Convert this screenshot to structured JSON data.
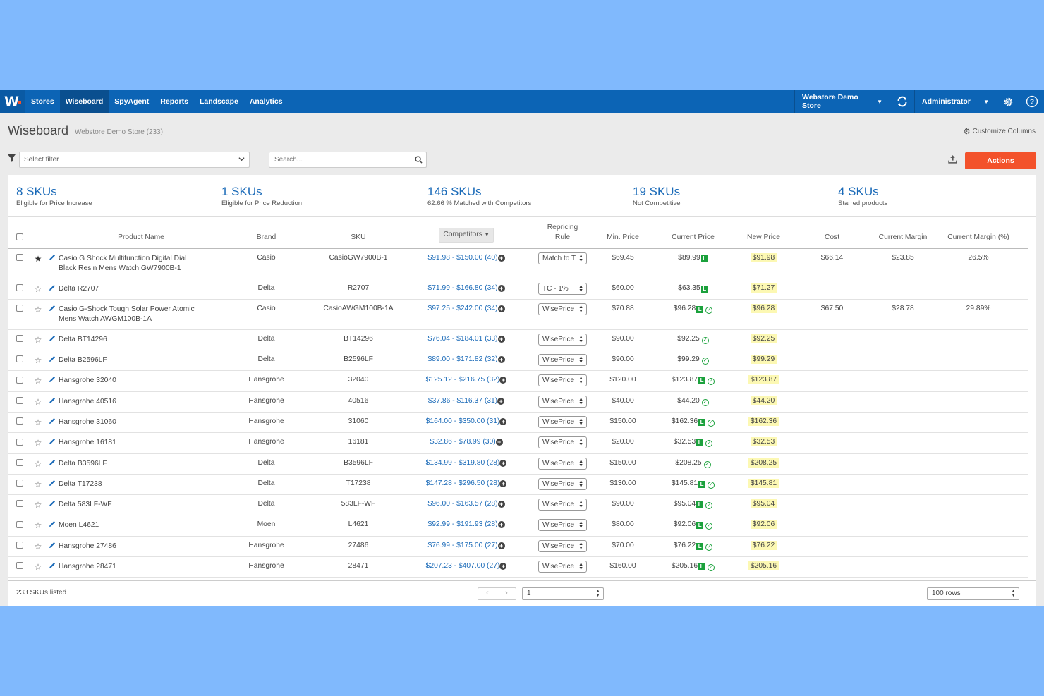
{
  "nav": {
    "logo": "W",
    "items": [
      "Stores",
      "Wiseboard",
      "SpyAgent",
      "Reports",
      "Landscape",
      "Analytics"
    ],
    "active": "Wiseboard",
    "store": "Webstore Demo Store",
    "user": "Administrator",
    "icons": [
      "sync-icon",
      "gear-icon",
      "help-icon"
    ]
  },
  "header": {
    "title": "Wiseboard",
    "subtitle": "Webstore Demo Store (233)",
    "customize": "Customize Columns"
  },
  "toolbar": {
    "filter_placeholder": "Select filter",
    "search_placeholder": "Search...",
    "actions_label": "Actions"
  },
  "stats": [
    {
      "value": "8 SKUs",
      "label": "Eligible for Price Increase"
    },
    {
      "value": "1 SKUs",
      "label": "Eligible for Price Reduction"
    },
    {
      "value": "146 SKUs",
      "label": "62.66 % Matched with Competitors"
    },
    {
      "value": "19 SKUs",
      "label": "Not Competitive"
    },
    {
      "value": "4 SKUs",
      "label": "Starred products"
    }
  ],
  "table": {
    "columns": {
      "product": "Product Name",
      "brand": "Brand",
      "sku": "SKU",
      "competitors": "Competitors",
      "rule_line1": "Repricing",
      "rule_line2": "Rule",
      "min": "Min. Price",
      "current": "Current Price",
      "new": "New Price",
      "cost": "Cost",
      "margin": "Current Margin",
      "margin_pct": "Current Margin (%)"
    },
    "rows": [
      {
        "name": "Casio G Shock Multifunction Digital Dial Black Resin Mens Watch GW7900B-1",
        "starred": true,
        "brand": "Casio",
        "sku": "CasioGW7900B-1",
        "competitors": "$91.98 - $150.00 (40)",
        "rule": "Match to T",
        "min": "$69.45",
        "current": "$89.99",
        "L": true,
        "ok": false,
        "new": "$91.98",
        "cost": "$66.14",
        "margin": "$23.85",
        "margin_pct": "26.5%"
      },
      {
        "name": "Delta R2707",
        "starred": false,
        "brand": "Delta",
        "sku": "R2707",
        "competitors": "$71.99 - $166.80 (34)",
        "rule": "TC - 1%",
        "min": "$60.00",
        "current": "$63.35",
        "L": true,
        "ok": false,
        "new": "$71.27",
        "cost": "",
        "margin": "",
        "margin_pct": ""
      },
      {
        "name": "Casio G-Shock Tough Solar Power Atomic Mens Watch AWGM100B-1A",
        "starred": false,
        "brand": "Casio",
        "sku": "CasioAWGM100B-1A",
        "competitors": "$97.25 - $242.00 (34)",
        "rule": "WisePrice",
        "min": "$70.88",
        "current": "$96.28",
        "L": true,
        "ok": true,
        "new": "$96.28",
        "cost": "$67.50",
        "margin": "$28.78",
        "margin_pct": "29.89%"
      },
      {
        "name": "Delta BT14296",
        "starred": false,
        "brand": "Delta",
        "sku": "BT14296",
        "competitors": "$76.04 - $184.01 (33)",
        "rule": "WisePrice",
        "min": "$90.00",
        "current": "$92.25",
        "L": false,
        "ok": true,
        "new": "$92.25",
        "cost": "",
        "margin": "",
        "margin_pct": ""
      },
      {
        "name": "Delta B2596LF",
        "starred": false,
        "brand": "Delta",
        "sku": "B2596LF",
        "competitors": "$89.00 - $171.82 (32)",
        "rule": "WisePrice",
        "min": "$90.00",
        "current": "$99.29",
        "L": false,
        "ok": true,
        "new": "$99.29",
        "cost": "",
        "margin": "",
        "margin_pct": ""
      },
      {
        "name": "Hansgrohe 32040",
        "starred": false,
        "brand": "Hansgrohe",
        "sku": "32040",
        "competitors": "$125.12 - $216.75 (32)",
        "rule": "WisePrice",
        "min": "$120.00",
        "current": "$123.87",
        "L": true,
        "ok": true,
        "new": "$123.87",
        "cost": "",
        "margin": "",
        "margin_pct": ""
      },
      {
        "name": "Hansgrohe 40516",
        "starred": false,
        "brand": "Hansgrohe",
        "sku": "40516",
        "competitors": "$37.86 - $116.37 (31)",
        "rule": "WisePrice",
        "min": "$40.00",
        "current": "$44.20",
        "L": false,
        "ok": true,
        "new": "$44.20",
        "cost": "",
        "margin": "",
        "margin_pct": ""
      },
      {
        "name": "Hansgrohe 31060",
        "starred": false,
        "brand": "Hansgrohe",
        "sku": "31060",
        "competitors": "$164.00 - $350.00 (31)",
        "rule": "WisePrice",
        "min": "$150.00",
        "current": "$162.36",
        "L": true,
        "ok": true,
        "new": "$162.36",
        "cost": "",
        "margin": "",
        "margin_pct": ""
      },
      {
        "name": "Hansgrohe 16181",
        "starred": false,
        "brand": "Hansgrohe",
        "sku": "16181",
        "competitors": "$32.86 - $78.99 (30)",
        "rule": "WisePrice",
        "min": "$20.00",
        "current": "$32.53",
        "L": true,
        "ok": true,
        "new": "$32.53",
        "cost": "",
        "margin": "",
        "margin_pct": ""
      },
      {
        "name": "Delta B3596LF",
        "starred": false,
        "brand": "Delta",
        "sku": "B3596LF",
        "competitors": "$134.99 - $319.80 (28)",
        "rule": "WisePrice",
        "min": "$150.00",
        "current": "$208.25",
        "L": false,
        "ok": true,
        "new": "$208.25",
        "cost": "",
        "margin": "",
        "margin_pct": ""
      },
      {
        "name": "Delta T17238",
        "starred": false,
        "brand": "Delta",
        "sku": "T17238",
        "competitors": "$147.28 - $296.50 (28)",
        "rule": "WisePrice",
        "min": "$130.00",
        "current": "$145.81",
        "L": true,
        "ok": true,
        "new": "$145.81",
        "cost": "",
        "margin": "",
        "margin_pct": ""
      },
      {
        "name": "Delta 583LF-WF",
        "starred": false,
        "brand": "Delta",
        "sku": "583LF-WF",
        "competitors": "$96.00 - $163.57 (28)",
        "rule": "WisePrice",
        "min": "$90.00",
        "current": "$95.04",
        "L": true,
        "ok": true,
        "new": "$95.04",
        "cost": "",
        "margin": "",
        "margin_pct": ""
      },
      {
        "name": "Moen L4621",
        "starred": false,
        "brand": "Moen",
        "sku": "L4621",
        "competitors": "$92.99 - $191.93 (28)",
        "rule": "WisePrice",
        "min": "$80.00",
        "current": "$92.06",
        "L": true,
        "ok": true,
        "new": "$92.06",
        "cost": "",
        "margin": "",
        "margin_pct": ""
      },
      {
        "name": "Hansgrohe 27486",
        "starred": false,
        "brand": "Hansgrohe",
        "sku": "27486",
        "competitors": "$76.99 - $175.00 (27)",
        "rule": "WisePrice",
        "min": "$70.00",
        "current": "$76.22",
        "L": true,
        "ok": true,
        "new": "$76.22",
        "cost": "",
        "margin": "",
        "margin_pct": ""
      },
      {
        "name": "Hansgrohe 28471",
        "starred": false,
        "brand": "Hansgrohe",
        "sku": "28471",
        "competitors": "$207.23 - $407.00 (27)",
        "rule": "WisePrice",
        "min": "$160.00",
        "current": "$205.16",
        "L": true,
        "ok": true,
        "new": "$205.16",
        "cost": "",
        "margin": "",
        "margin_pct": ""
      }
    ]
  },
  "footer": {
    "count": "233 SKUs listed",
    "prev": "‹",
    "next": "›",
    "page": "1",
    "rows": "100 rows"
  },
  "colors": {
    "background": "#80b9fd",
    "nav": "#0c64b5",
    "accent": "#f3522b",
    "link": "#1a6ab8",
    "badge": "#1ba13c",
    "highlight": "#fcf8b3"
  }
}
